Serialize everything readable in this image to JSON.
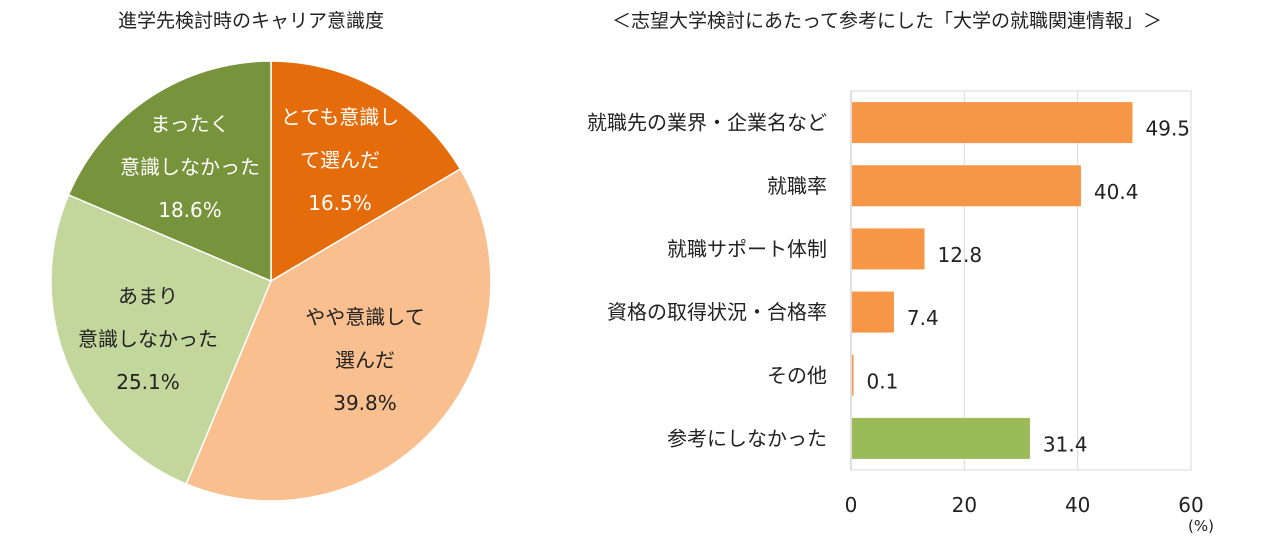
{
  "chart_data": [
    {
      "type": "pie",
      "title": "進学先検討時のキャリア意識度",
      "slices": [
        {
          "label_lines": [
            "とても意識し",
            "て選んだ"
          ],
          "value": 16.5,
          "value_label": "16.5%",
          "color": "#e46c0a"
        },
        {
          "label_lines": [
            "やや意識して",
            "選んだ"
          ],
          "value": 39.8,
          "value_label": "39.8%",
          "color": "#f9bf8f"
        },
        {
          "label_lines": [
            "あまり",
            "意識しなかった"
          ],
          "value": 25.1,
          "value_label": "25.1%",
          "color": "#c3d69b"
        },
        {
          "label_lines": [
            "まったく",
            "意識しなかった"
          ],
          "value": 18.6,
          "value_label": "18.6%",
          "color": "#77933c"
        }
      ]
    },
    {
      "type": "bar",
      "orientation": "horizontal",
      "title": "＜志望大学検討にあたって参考にした「大学の就職関連情報」＞",
      "categories": [
        "就職先の業界・企業名など",
        "就職率",
        "就職サポート体制",
        "資格の取得状況・合格率",
        "その他",
        "参考にしなかった"
      ],
      "values": [
        49.5,
        40.4,
        12.8,
        7.4,
        0.1,
        31.4
      ],
      "value_labels": [
        "49.5",
        "40.4",
        "12.8",
        "7.4",
        "0.1",
        "31.4"
      ],
      "colors": [
        "#f79646",
        "#f79646",
        "#f79646",
        "#f79646",
        "#f79646",
        "#9bbb59"
      ],
      "xlim": [
        0,
        60
      ],
      "xticks": [
        "0",
        "20",
        "40",
        "60"
      ],
      "xunit": "(%)",
      "grid": true
    }
  ]
}
